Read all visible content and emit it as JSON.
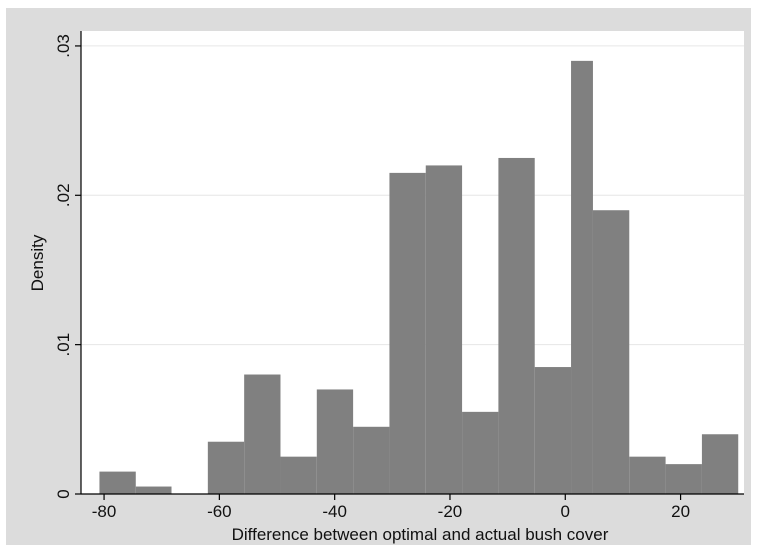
{
  "chart_data": {
    "type": "bar",
    "title": "",
    "xlabel": "Difference between optimal and actual bush cover",
    "ylabel": "Density",
    "xlim": [
      -84,
      31
    ],
    "ylim": [
      0,
      0.031
    ],
    "x_ticks": [
      -80,
      -60,
      -40,
      -20,
      0,
      20
    ],
    "x_tick_labels": [
      "-80",
      "-60",
      "-40",
      "-20",
      "0",
      "20"
    ],
    "y_ticks": [
      0,
      0.01,
      0.02,
      0.03
    ],
    "y_tick_labels": [
      "0",
      ".01",
      ".02",
      ".03"
    ],
    "grid": true,
    "bar_color": "#808080",
    "bins": [
      {
        "start": -80.8,
        "end": -74.5,
        "value": 0.0015
      },
      {
        "start": -74.5,
        "end": -68.3,
        "value": 0.0005
      },
      {
        "start": -68.3,
        "end": -62.0,
        "value": 0.0
      },
      {
        "start": -62.0,
        "end": -55.7,
        "value": 0.0035
      },
      {
        "start": -55.7,
        "end": -49.4,
        "value": 0.008
      },
      {
        "start": -49.4,
        "end": -43.1,
        "value": 0.0025
      },
      {
        "start": -43.1,
        "end": -36.8,
        "value": 0.007
      },
      {
        "start": -36.8,
        "end": -30.5,
        "value": 0.0045
      },
      {
        "start": -30.5,
        "end": -24.2,
        "value": 0.0215
      },
      {
        "start": -24.2,
        "end": -17.9,
        "value": 0.022
      },
      {
        "start": -17.9,
        "end": -11.6,
        "value": 0.0055
      },
      {
        "start": -11.6,
        "end": -5.3,
        "value": 0.0225
      },
      {
        "start": -5.3,
        "end": 1.0,
        "value": 0.0085
      },
      {
        "start": 1.0,
        "end": 4.8,
        "value": 0.029
      },
      {
        "start": 4.8,
        "end": 11.1,
        "value": 0.019
      },
      {
        "start": 11.1,
        "end": 17.4,
        "value": 0.0025
      },
      {
        "start": 17.4,
        "end": 23.7,
        "value": 0.002
      },
      {
        "start": 23.7,
        "end": 30.0,
        "value": 0.004
      }
    ]
  }
}
